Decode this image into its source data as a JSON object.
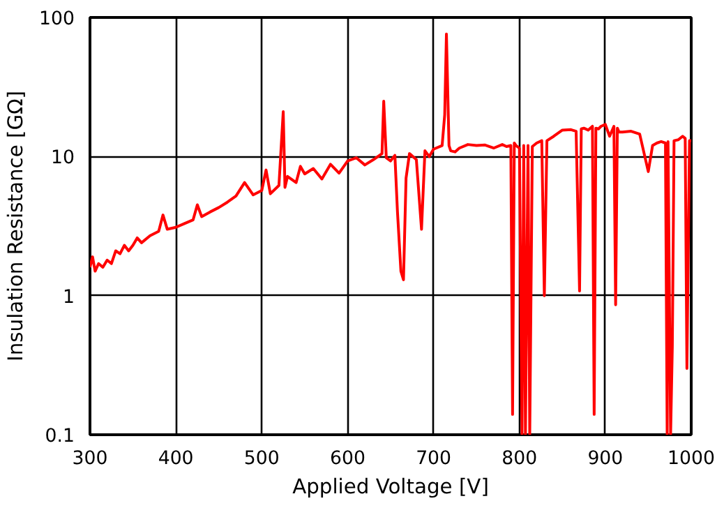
{
  "chart_data": {
    "type": "line",
    "xlabel": "Applied Voltage [V]",
    "ylabel": "Insulation Resistance [GΩ]",
    "log": "y",
    "grid": true,
    "marker": "none",
    "line_style": "solid",
    "xlim": [
      300,
      1000
    ],
    "ylim": [
      0.1,
      100
    ],
    "xticks": [
      300,
      400,
      500,
      600,
      700,
      800,
      900,
      1000
    ],
    "yticks": [
      0.1,
      1,
      10,
      100
    ],
    "series": [
      {
        "color": "#ff0000",
        "x": [
          300,
          303,
          306,
          310,
          315,
          320,
          325,
          330,
          335,
          340,
          345,
          350,
          355,
          360,
          370,
          380,
          385,
          390,
          400,
          410,
          420,
          425,
          430,
          440,
          450,
          460,
          470,
          480,
          490,
          500,
          505,
          510,
          520,
          525,
          527,
          530,
          540,
          545,
          550,
          560,
          570,
          580,
          590,
          600,
          610,
          620,
          630,
          640,
          642,
          645,
          650,
          655,
          658,
          662,
          665,
          668,
          672,
          680,
          686,
          690,
          695,
          700,
          710,
          713,
          715,
          718,
          720,
          725,
          730,
          740,
          750,
          760,
          770,
          780,
          785,
          790,
          792,
          794,
          796,
          800,
          803,
          805,
          807,
          810,
          812,
          815,
          820,
          826,
          829,
          832,
          840,
          850,
          860,
          866,
          870,
          872,
          875,
          880,
          885,
          887,
          889,
          892,
          895,
          900,
          905,
          910,
          912,
          914,
          916,
          920,
          930,
          940,
          950,
          955,
          960,
          965,
          970,
          972,
          973,
          976,
          978,
          980,
          985,
          990,
          993,
          995,
          998,
          1000
        ],
        "values": [
          1.6,
          1.9,
          1.5,
          1.7,
          1.6,
          1.8,
          1.7,
          2.1,
          2,
          2.3,
          2.1,
          2.3,
          2.6,
          2.4,
          2.7,
          2.9,
          3.8,
          3,
          3.1,
          3.3,
          3.5,
          4.5,
          3.7,
          4,
          4.3,
          4.7,
          5.2,
          6.5,
          5.3,
          5.7,
          8,
          5.4,
          6.2,
          21,
          6,
          7.2,
          6.5,
          8.5,
          7.5,
          8.2,
          6.9,
          8.8,
          7.6,
          9.3,
          9.8,
          8.7,
          9.5,
          10.5,
          25,
          9.8,
          9.3,
          10.2,
          4,
          1.5,
          1.3,
          7,
          10.5,
          9.5,
          3,
          11,
          10,
          11.3,
          12,
          20,
          76,
          12,
          11,
          10.8,
          11.5,
          12.2,
          12,
          12.1,
          11.5,
          12.2,
          11.8,
          12,
          0.14,
          12.5,
          12,
          11.5,
          0.1,
          12,
          0.1,
          12,
          0.1,
          11.8,
          12.5,
          13,
          1,
          13,
          14,
          15.5,
          15.6,
          15.2,
          1.08,
          15.8,
          16,
          15.5,
          16.5,
          0.14,
          16,
          15.8,
          16.5,
          17,
          14,
          16.5,
          0.86,
          16,
          15,
          15,
          15.2,
          14.5,
          7.8,
          12,
          12.5,
          12.8,
          12.5,
          0.1,
          12.8,
          0.1,
          0.43,
          13,
          13.2,
          14,
          13.5,
          0.3,
          13,
          13
        ]
      }
    ]
  }
}
